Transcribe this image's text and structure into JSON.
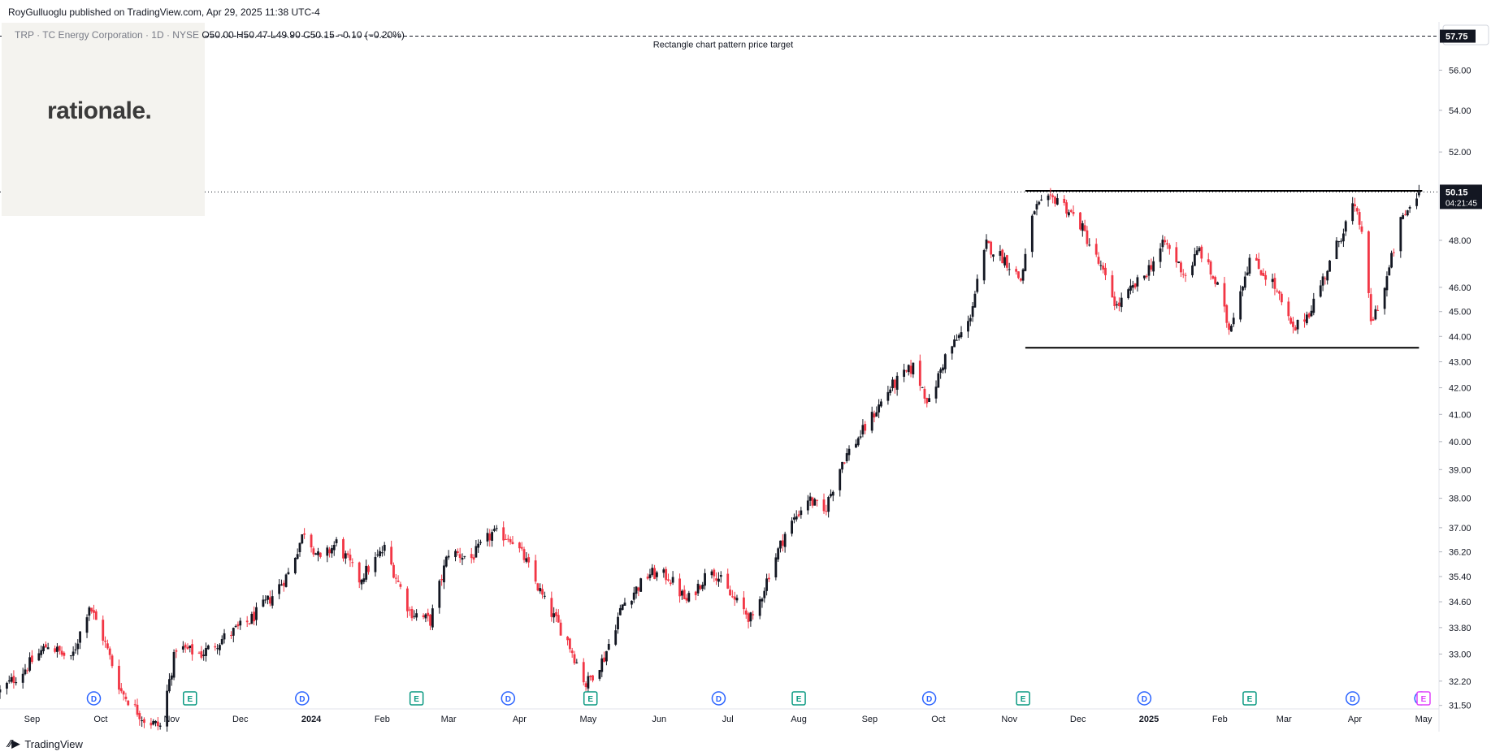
{
  "header": {
    "published": "RoyGulluoglu published on TradingView.com, Apr 29, 2025 11:38 UTC-4"
  },
  "legend": {
    "symbol": "TRP · TC Energy Corporation · 1D · NYSE",
    "ohlc": "O50.00  H50.47  L49.90  C50.15",
    "change": "−0.10 (−0.20%)"
  },
  "watermark": {
    "text": "rationale."
  },
  "footer": {
    "brand": "TradingView"
  },
  "chart_data": {
    "type": "candlestick",
    "currency": "USD",
    "y_axis_scale": "log",
    "y_ticks": [
      "56.00",
      "54.00",
      "52.00",
      "48.00",
      "46.00",
      "45.00",
      "44.00",
      "43.00",
      "42.00",
      "41.00",
      "40.00",
      "39.00",
      "38.00",
      "37.00",
      "36.20",
      "35.40",
      "34.60",
      "33.80",
      "33.00",
      "32.20",
      "31.50"
    ],
    "ylim": [
      31.4,
      58.5
    ],
    "x_ticks": [
      "Sep",
      "Oct",
      "Nov",
      "Dec",
      "2024",
      "Feb",
      "Mar",
      "Apr",
      "May",
      "Jun",
      "Jul",
      "Aug",
      "Sep",
      "Oct",
      "Nov",
      "Dec",
      "2025",
      "Feb",
      "Mar",
      "Apr",
      "May"
    ],
    "x_range": [
      "2023-08-18",
      "2025-05-01"
    ],
    "last_price": {
      "value": 50.15,
      "label": "50.15",
      "countdown": "04:21:45",
      "color": "#131722"
    },
    "target_price": {
      "value": 57.75,
      "label": "57.75",
      "annotation": "Rectangle chart pattern price target"
    },
    "rectangle": {
      "top": 50.2,
      "bottom": 43.55,
      "start": "2024-11-08",
      "end": "2025-04-29"
    },
    "colors": {
      "up": "#131722",
      "down": "#f23645"
    },
    "close_anchors": [
      [
        "2023-08-18",
        31.9
      ],
      [
        "2023-08-28",
        32.5
      ],
      [
        "2023-09-08",
        33.3
      ],
      [
        "2023-09-18",
        32.8
      ],
      [
        "2023-09-26",
        34.5
      ],
      [
        "2023-10-02",
        33.5
      ],
      [
        "2023-10-10",
        31.9
      ],
      [
        "2023-10-20",
        31.1
      ],
      [
        "2023-10-27",
        30.9
      ],
      [
        "2023-11-03",
        33.2
      ],
      [
        "2023-11-14",
        33.0
      ],
      [
        "2023-11-24",
        33.5
      ],
      [
        "2023-12-05",
        34.0
      ],
      [
        "2023-12-14",
        34.7
      ],
      [
        "2023-12-22",
        35.5
      ],
      [
        "2023-12-29",
        36.9
      ],
      [
        "2024-01-05",
        35.9
      ],
      [
        "2024-01-12",
        36.5
      ],
      [
        "2024-01-22",
        35.3
      ],
      [
        "2024-02-02",
        36.3
      ],
      [
        "2024-02-13",
        34.3
      ],
      [
        "2024-02-22",
        34.0
      ],
      [
        "2024-03-01",
        36.2
      ],
      [
        "2024-03-11",
        36.0
      ],
      [
        "2024-03-20",
        36.8
      ],
      [
        "2024-03-28",
        36.7
      ],
      [
        "2024-04-03",
        36.0
      ],
      [
        "2024-04-12",
        34.6
      ],
      [
        "2024-04-22",
        33.4
      ],
      [
        "2024-04-30",
        32.1
      ],
      [
        "2024-05-08",
        32.9
      ],
      [
        "2024-05-16",
        34.5
      ],
      [
        "2024-05-28",
        35.5
      ],
      [
        "2024-06-05",
        35.4
      ],
      [
        "2024-06-13",
        34.6
      ],
      [
        "2024-06-24",
        35.7
      ],
      [
        "2024-07-02",
        34.8
      ],
      [
        "2024-07-12",
        34.0
      ],
      [
        "2024-07-19",
        35.5
      ],
      [
        "2024-07-26",
        36.8
      ],
      [
        "2024-08-05",
        38.0
      ],
      [
        "2024-08-12",
        37.5
      ],
      [
        "2024-08-20",
        39.3
      ],
      [
        "2024-08-30",
        40.5
      ],
      [
        "2024-09-10",
        42.0
      ],
      [
        "2024-09-20",
        42.8
      ],
      [
        "2024-09-27",
        41.4
      ],
      [
        "2024-10-04",
        43.2
      ],
      [
        "2024-10-14",
        44.5
      ],
      [
        "2024-10-22",
        47.8
      ],
      [
        "2024-10-30",
        47.2
      ],
      [
        "2024-11-06",
        46.3
      ],
      [
        "2024-11-12",
        49.4
      ],
      [
        "2024-11-22",
        49.9
      ],
      [
        "2024-12-02",
        48.7
      ],
      [
        "2024-12-10",
        47.0
      ],
      [
        "2024-12-18",
        45.2
      ],
      [
        "2024-12-30",
        46.5
      ],
      [
        "2025-01-08",
        47.9
      ],
      [
        "2025-01-17",
        46.5
      ],
      [
        "2025-01-23",
        47.6
      ],
      [
        "2025-01-31",
        46.0
      ],
      [
        "2025-02-05",
        44.3
      ],
      [
        "2025-02-14",
        47.2
      ],
      [
        "2025-02-24",
        46.2
      ],
      [
        "2025-03-05",
        44.2
      ],
      [
        "2025-03-12",
        45.0
      ],
      [
        "2025-03-21",
        47.0
      ],
      [
        "2025-03-31",
        49.5
      ],
      [
        "2025-04-04",
        48.5
      ],
      [
        "2025-04-08",
        44.5
      ],
      [
        "2025-04-14",
        46.0
      ],
      [
        "2025-04-21",
        48.8
      ],
      [
        "2025-04-29",
        50.15
      ]
    ],
    "dividend_markers": [
      "2023-09-28",
      "2023-12-28",
      "2024-03-27",
      "2024-06-27",
      "2024-09-27",
      "2024-12-30",
      "2025-03-31",
      "2025-04-30"
    ],
    "earnings_markers": [
      "2023-11-09",
      "2024-02-16",
      "2024-05-02",
      "2024-08-01",
      "2024-11-07",
      "2025-02-14",
      "2025-05-01"
    ],
    "marker_labels": {
      "dividend": "D",
      "earnings": "E"
    }
  }
}
